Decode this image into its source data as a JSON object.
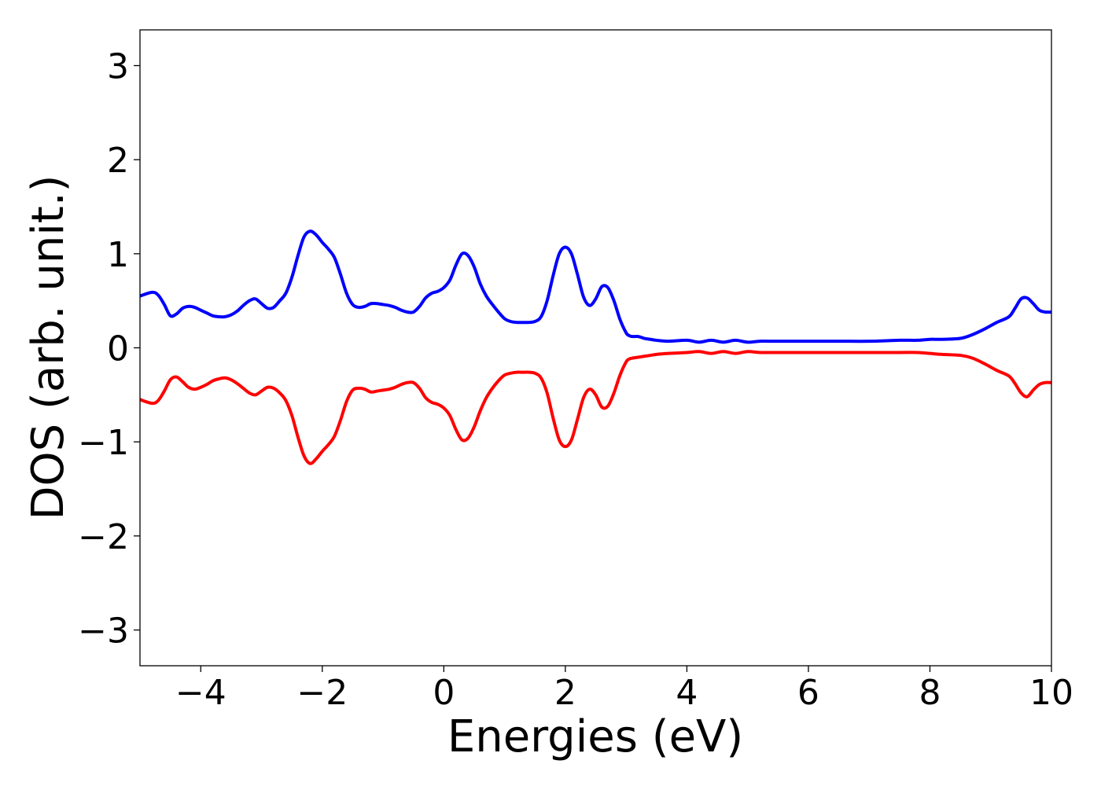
{
  "chart_data": {
    "type": "line",
    "title": "",
    "xlabel": "Energies (eV)",
    "ylabel": "DOS (arb. unit.)",
    "xlim": [
      -5,
      10
    ],
    "ylim": [
      -3.38,
      3.38
    ],
    "x_ticks": [
      -4,
      -2,
      0,
      2,
      4,
      6,
      8,
      10
    ],
    "x_tick_labels": [
      "−4",
      "−2",
      "0",
      "2",
      "4",
      "6",
      "8",
      "10"
    ],
    "y_ticks": [
      -3,
      -2,
      -1,
      0,
      1,
      2,
      3
    ],
    "y_tick_labels": [
      "−3",
      "−2",
      "−1",
      "0",
      "1",
      "2",
      "3"
    ],
    "grid": false,
    "legend": "none",
    "series": [
      {
        "color": "#0000ff",
        "x": [
          -5.0,
          -4.8,
          -4.7,
          -4.6,
          -4.5,
          -4.4,
          -4.3,
          -4.2,
          -4.1,
          -4.0,
          -3.9,
          -3.8,
          -3.7,
          -3.6,
          -3.5,
          -3.4,
          -3.3,
          -3.2,
          -3.1,
          -3.0,
          -2.9,
          -2.8,
          -2.7,
          -2.6,
          -2.5,
          -2.4,
          -2.3,
          -2.2,
          -2.1,
          -2.0,
          -1.9,
          -1.8,
          -1.7,
          -1.6,
          -1.5,
          -1.4,
          -1.3,
          -1.2,
          -1.1,
          -1.0,
          -0.9,
          -0.8,
          -0.7,
          -0.6,
          -0.5,
          -0.4,
          -0.3,
          -0.2,
          -0.1,
          0.0,
          0.1,
          0.2,
          0.3,
          0.4,
          0.5,
          0.6,
          0.7,
          0.8,
          0.9,
          1.0,
          1.1,
          1.2,
          1.3,
          1.4,
          1.5,
          1.6,
          1.7,
          1.8,
          1.9,
          2.0,
          2.1,
          2.2,
          2.3,
          2.4,
          2.5,
          2.6,
          2.7,
          2.8,
          2.9,
          3.0,
          3.05,
          3.1,
          3.2,
          3.3,
          3.4,
          3.5,
          3.7,
          4.0,
          4.2,
          4.4,
          4.6,
          4.8,
          5.0,
          5.2,
          5.4,
          5.6,
          6.0,
          6.5,
          7.0,
          7.5,
          7.8,
          8.0,
          8.2,
          8.5,
          8.7,
          8.9,
          9.1,
          9.3,
          9.4,
          9.5,
          9.6,
          9.7,
          9.8,
          9.9,
          10.0
        ],
        "y": [
          0.55,
          0.59,
          0.56,
          0.46,
          0.34,
          0.36,
          0.42,
          0.44,
          0.43,
          0.4,
          0.37,
          0.34,
          0.33,
          0.33,
          0.35,
          0.39,
          0.45,
          0.5,
          0.52,
          0.47,
          0.42,
          0.43,
          0.5,
          0.58,
          0.75,
          0.98,
          1.18,
          1.24,
          1.2,
          1.12,
          1.05,
          0.96,
          0.78,
          0.58,
          0.46,
          0.43,
          0.44,
          0.47,
          0.47,
          0.46,
          0.45,
          0.43,
          0.4,
          0.38,
          0.38,
          0.44,
          0.53,
          0.58,
          0.6,
          0.64,
          0.72,
          0.88,
          1.0,
          0.98,
          0.86,
          0.68,
          0.55,
          0.46,
          0.38,
          0.31,
          0.28,
          0.27,
          0.27,
          0.27,
          0.28,
          0.33,
          0.5,
          0.77,
          1.0,
          1.07,
          1.0,
          0.78,
          0.54,
          0.45,
          0.52,
          0.65,
          0.64,
          0.5,
          0.3,
          0.16,
          0.13,
          0.12,
          0.12,
          0.1,
          0.09,
          0.08,
          0.07,
          0.08,
          0.06,
          0.08,
          0.06,
          0.08,
          0.06,
          0.07,
          0.07,
          0.07,
          0.07,
          0.07,
          0.07,
          0.08,
          0.08,
          0.09,
          0.09,
          0.1,
          0.14,
          0.2,
          0.27,
          0.33,
          0.42,
          0.52,
          0.53,
          0.47,
          0.4,
          0.38,
          0.38
        ]
      },
      {
        "color": "#ff0000",
        "x": [
          -5.0,
          -4.8,
          -4.7,
          -4.6,
          -4.5,
          -4.4,
          -4.3,
          -4.2,
          -4.1,
          -4.0,
          -3.9,
          -3.8,
          -3.7,
          -3.6,
          -3.5,
          -3.4,
          -3.3,
          -3.2,
          -3.1,
          -3.0,
          -2.9,
          -2.8,
          -2.7,
          -2.6,
          -2.5,
          -2.4,
          -2.3,
          -2.2,
          -2.1,
          -2.0,
          -1.9,
          -1.8,
          -1.7,
          -1.6,
          -1.5,
          -1.4,
          -1.3,
          -1.2,
          -1.1,
          -1.0,
          -0.9,
          -0.8,
          -0.7,
          -0.6,
          -0.5,
          -0.4,
          -0.3,
          -0.2,
          -0.1,
          0.0,
          0.1,
          0.2,
          0.3,
          0.4,
          0.5,
          0.6,
          0.7,
          0.8,
          0.9,
          1.0,
          1.1,
          1.2,
          1.3,
          1.4,
          1.5,
          1.6,
          1.7,
          1.8,
          1.9,
          2.0,
          2.1,
          2.2,
          2.3,
          2.4,
          2.5,
          2.6,
          2.7,
          2.8,
          2.9,
          3.0,
          3.05,
          3.1,
          3.2,
          3.3,
          3.4,
          3.5,
          3.7,
          4.0,
          4.2,
          4.4,
          4.6,
          4.8,
          5.0,
          5.2,
          5.4,
          5.6,
          6.0,
          6.5,
          7.0,
          7.5,
          7.8,
          8.0,
          8.2,
          8.5,
          8.7,
          8.9,
          9.1,
          9.3,
          9.4,
          9.5,
          9.6,
          9.7,
          9.8,
          9.9,
          10.0
        ],
        "y": [
          -0.55,
          -0.59,
          -0.56,
          -0.46,
          -0.34,
          -0.31,
          -0.36,
          -0.42,
          -0.44,
          -0.42,
          -0.39,
          -0.35,
          -0.33,
          -0.32,
          -0.34,
          -0.38,
          -0.43,
          -0.48,
          -0.5,
          -0.46,
          -0.42,
          -0.43,
          -0.48,
          -0.56,
          -0.72,
          -0.95,
          -1.15,
          -1.23,
          -1.18,
          -1.1,
          -1.03,
          -0.94,
          -0.77,
          -0.57,
          -0.45,
          -0.43,
          -0.44,
          -0.47,
          -0.46,
          -0.45,
          -0.44,
          -0.42,
          -0.39,
          -0.37,
          -0.37,
          -0.43,
          -0.53,
          -0.58,
          -0.6,
          -0.64,
          -0.72,
          -0.87,
          -0.98,
          -0.96,
          -0.84,
          -0.67,
          -0.53,
          -0.43,
          -0.35,
          -0.29,
          -0.27,
          -0.26,
          -0.26,
          -0.26,
          -0.27,
          -0.32,
          -0.48,
          -0.75,
          -0.98,
          -1.05,
          -0.98,
          -0.76,
          -0.53,
          -0.44,
          -0.5,
          -0.63,
          -0.62,
          -0.48,
          -0.29,
          -0.15,
          -0.12,
          -0.11,
          -0.1,
          -0.09,
          -0.08,
          -0.07,
          -0.06,
          -0.05,
          -0.04,
          -0.06,
          -0.04,
          -0.06,
          -0.04,
          -0.05,
          -0.05,
          -0.05,
          -0.05,
          -0.05,
          -0.05,
          -0.05,
          -0.05,
          -0.06,
          -0.07,
          -0.08,
          -0.11,
          -0.17,
          -0.24,
          -0.3,
          -0.38,
          -0.48,
          -0.52,
          -0.45,
          -0.39,
          -0.37,
          -0.37
        ]
      }
    ]
  }
}
